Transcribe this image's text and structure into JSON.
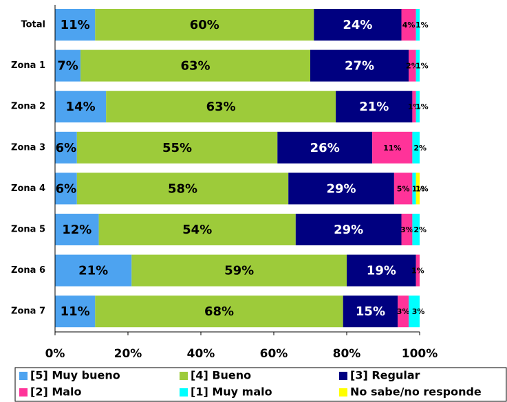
{
  "chart_data": {
    "type": "stacked-barh",
    "categories": [
      "Total",
      "Zona 1",
      "Zona 2",
      "Zona 3",
      "Zona 4",
      "Zona 5",
      "Zona 6",
      "Zona 7"
    ],
    "series": [
      {
        "name": "[5] Muy bueno",
        "color": "#4da3f0",
        "values": [
          11,
          7,
          14,
          6,
          6,
          12,
          21,
          11
        ],
        "value_labels": [
          "11%",
          "7%",
          "14%",
          "6%",
          "6%",
          "12%",
          "21%",
          "11%"
        ]
      },
      {
        "name": "[4] Bueno",
        "color": "#9dcb3a",
        "values": [
          60,
          63,
          63,
          55,
          58,
          54,
          59,
          68
        ],
        "value_labels": [
          "60%",
          "63%",
          "63%",
          "55%",
          "58%",
          "54%",
          "59%",
          "68%"
        ]
      },
      {
        "name": "[3] Regular",
        "color": "#000080",
        "values": [
          24,
          27,
          21,
          26,
          29,
          29,
          19,
          15
        ],
        "value_labels": [
          "24%",
          "27%",
          "21%",
          "26%",
          "29%",
          "29%",
          "19%",
          "15%"
        ]
      },
      {
        "name": "[2] Malo",
        "color": "#ff3399",
        "values": [
          4,
          2,
          1,
          11,
          5,
          3,
          1,
          3
        ],
        "value_labels": [
          "4%",
          "2%",
          "1%",
          "11%",
          "5%",
          "3%",
          "1%",
          "3%"
        ]
      },
      {
        "name": "[1] Muy malo",
        "color": "#00ffff",
        "values": [
          1,
          1,
          1,
          2,
          1,
          2,
          0,
          3
        ],
        "value_labels": [
          "1%",
          "1%",
          "1%",
          "2%",
          "1%",
          "2%",
          null,
          "3%"
        ]
      },
      {
        "name": "No sabe/no responde",
        "color": "#ffff00",
        "values": [
          0,
          0,
          0,
          0,
          1,
          0,
          0,
          0
        ],
        "value_labels": [
          null,
          null,
          null,
          null,
          "1%",
          null,
          null,
          null
        ]
      }
    ],
    "xlim": [
      0,
      100
    ],
    "xticks": [
      {
        "value": 0,
        "label": "0%"
      },
      {
        "value": 20,
        "label": "20%"
      },
      {
        "value": 40,
        "label": "40%"
      },
      {
        "value": 60,
        "label": "60%"
      },
      {
        "value": 80,
        "label": "80%"
      },
      {
        "value": 100,
        "label": "100%"
      }
    ]
  }
}
